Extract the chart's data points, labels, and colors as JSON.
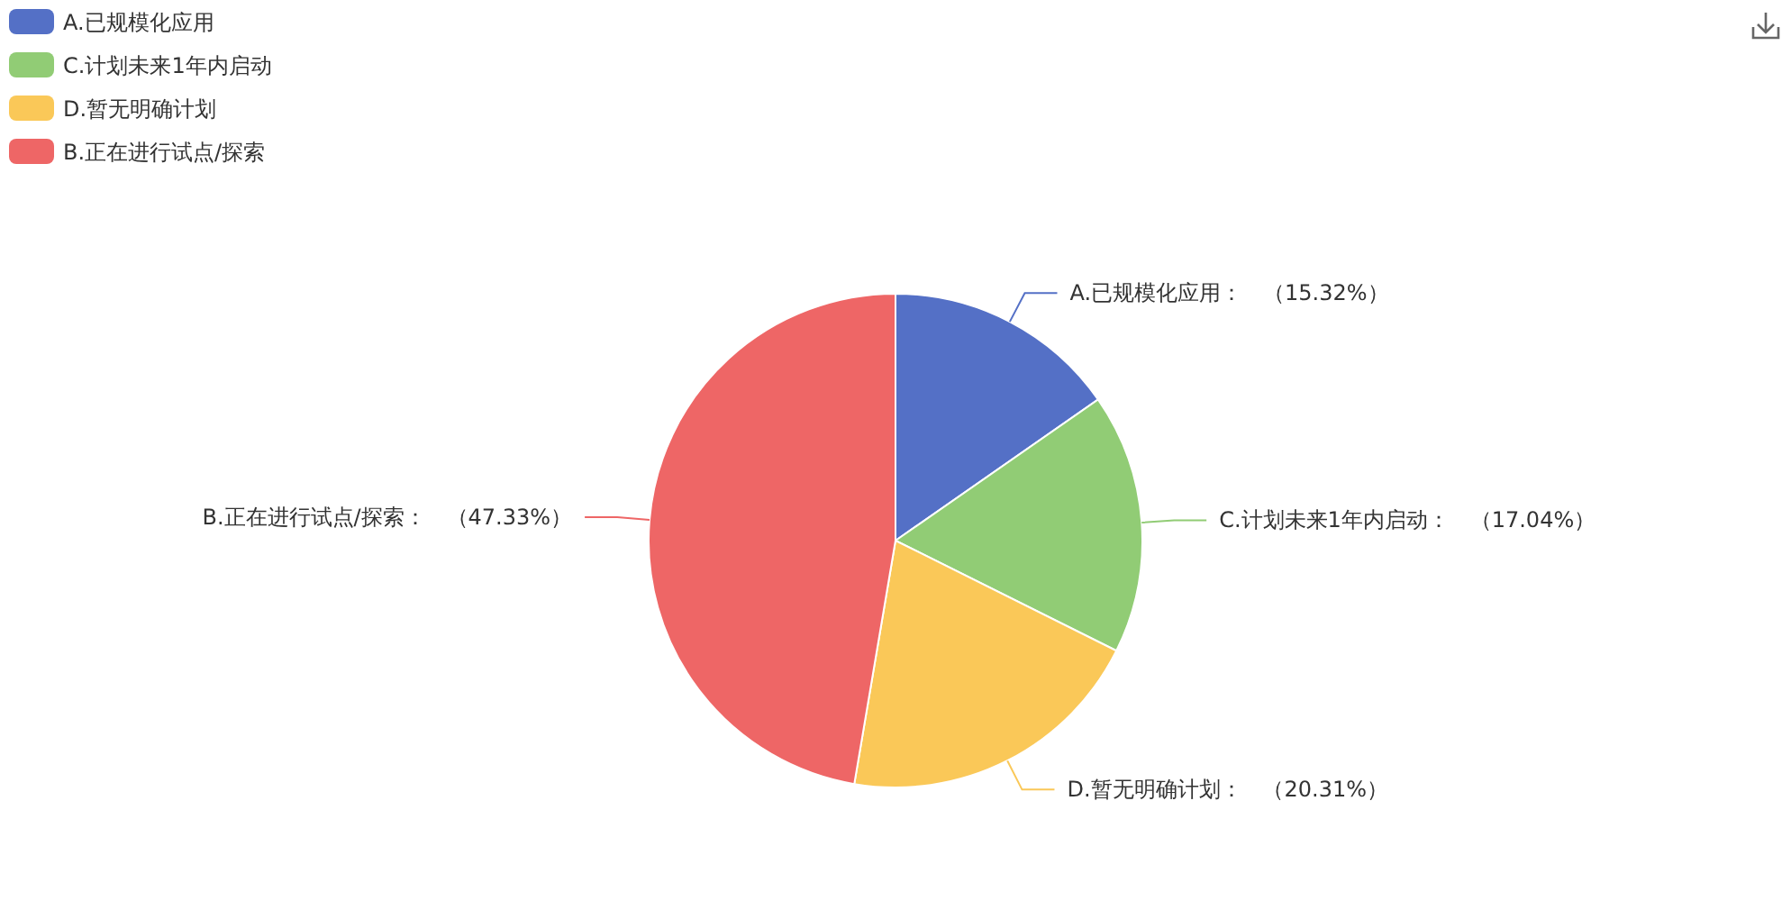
{
  "chart_data": {
    "type": "pie",
    "categories": [
      "A.已规模化应用",
      "C.计划未来1年内启动",
      "D.暂无明确计划",
      "B.正在进行试点/探索"
    ],
    "values": [
      15.32,
      17.04,
      20.31,
      47.33
    ],
    "colors": [
      "#5470c6",
      "#91cc75",
      "#fac858",
      "#ee6666"
    ],
    "value_labels": [
      "A.已规模化应用：   （15.32%）",
      "C.计划未来1年内启动：   （17.04%）",
      "D.暂无明确计划：   （20.31%）",
      "B.正在进行试点/探索：   （47.33%）"
    ],
    "legend": "top left"
  }
}
